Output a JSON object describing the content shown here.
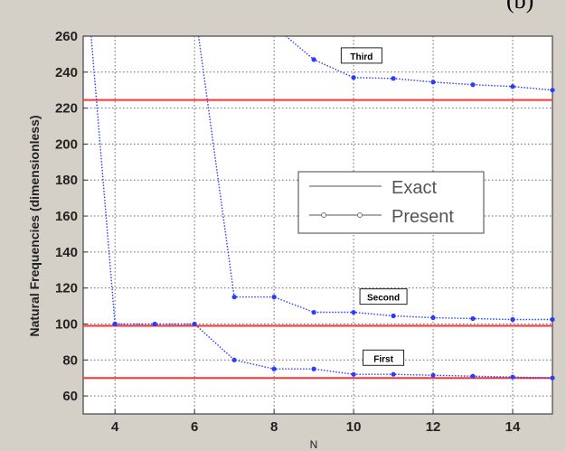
{
  "panel_label": "(b)",
  "chart_data": {
    "type": "line",
    "title": "",
    "xlabel": "N",
    "ylabel": "Natural Frequencies (dimensionless)",
    "xlim": [
      3.2,
      15
    ],
    "ylim": [
      50,
      260
    ],
    "x_ticks": [
      4,
      6,
      8,
      10,
      12,
      14
    ],
    "y_ticks": [
      60,
      80,
      100,
      120,
      140,
      160,
      180,
      200,
      220,
      240,
      260
    ],
    "grid": true,
    "legend": {
      "placement": "center-right",
      "entries": [
        {
          "label": "Exact",
          "style": "solid line"
        },
        {
          "label": "Present",
          "style": "dotted line with circle markers"
        }
      ]
    },
    "exact_lines": [
      {
        "mode": "First",
        "y": 70,
        "color": "#ff3333"
      },
      {
        "mode": "Second",
        "y": 99,
        "color": "#ff3333"
      },
      {
        "mode": "Third",
        "y": 224.5,
        "color": "#ff3333"
      }
    ],
    "series": [
      {
        "mode": "First",
        "color": "#2a3cff",
        "x": [
          4,
          5,
          6,
          7,
          8,
          9,
          10,
          11,
          12,
          13,
          14,
          15
        ],
        "y": [
          100,
          100,
          100,
          80,
          75,
          75,
          72,
          72,
          71.5,
          71,
          70.5,
          70
        ]
      },
      {
        "mode": "Second",
        "color": "#2a3cff",
        "x": [
          6.1,
          7,
          8,
          9,
          10,
          11,
          12,
          13,
          14,
          15
        ],
        "y": [
          260,
          115,
          115,
          106.5,
          106.5,
          104.5,
          103.5,
          103,
          102.5,
          102.5
        ]
      },
      {
        "mode": "Third",
        "color": "#2a3cff",
        "x": [
          3.4,
          4
        ],
        "y": [
          260,
          100
        ]
      },
      {
        "mode": "Third-upper",
        "color": "#2a3cff",
        "x": [
          8.3,
          9,
          10,
          11,
          12,
          13,
          14,
          15
        ],
        "y": [
          260,
          247,
          237,
          236.5,
          234.5,
          233,
          232,
          230
        ]
      }
    ],
    "mode_labels": [
      {
        "text": "First",
        "x": 10.75,
        "y": 81
      },
      {
        "text": "Second",
        "x": 10.75,
        "y": 115
      },
      {
        "text": "Third",
        "x": 10.2,
        "y": 249
      }
    ]
  }
}
